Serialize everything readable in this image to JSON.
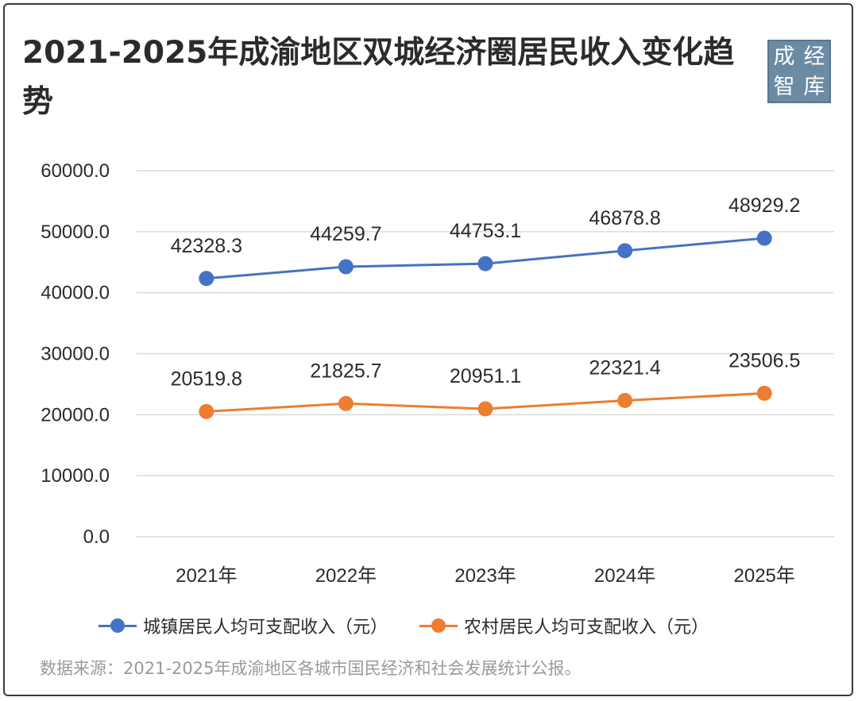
{
  "title": "2021-2025年成渝地区双城经济圈居民收入变化趋势",
  "logo": {
    "chars": [
      "成",
      "经",
      "智",
      "库"
    ],
    "color": "#6d8aa4"
  },
  "source": "数据来源：2021-2025年成渝地区各城市国民经济和社会发展统计公报。",
  "chart_data": {
    "type": "line",
    "categories": [
      "2021年",
      "2022年",
      "2023年",
      "2024年",
      "2025年"
    ],
    "ylim": [
      0,
      60000
    ],
    "yticks": [
      "0.0",
      "10000.0",
      "20000.0",
      "30000.0",
      "40000.0",
      "50000.0",
      "60000.0"
    ],
    "grid": true,
    "legend_position": "bottom",
    "series": [
      {
        "name": "城镇居民人均可支配收入（元）",
        "values": [
          42328.3,
          44259.7,
          44753.1,
          46878.8,
          48929.2
        ],
        "labels": [
          "42328.3",
          "44259.7",
          "44753.1",
          "46878.8",
          "48929.2"
        ],
        "color": "#4472c4"
      },
      {
        "name": "农村居民人均可支配收入（元）",
        "values": [
          20519.8,
          21825.7,
          20951.1,
          22321.4,
          23506.5
        ],
        "labels": [
          "20519.8",
          "21825.7",
          "20951.1",
          "22321.4",
          "23506.5"
        ],
        "color": "#ed7d31"
      }
    ]
  }
}
